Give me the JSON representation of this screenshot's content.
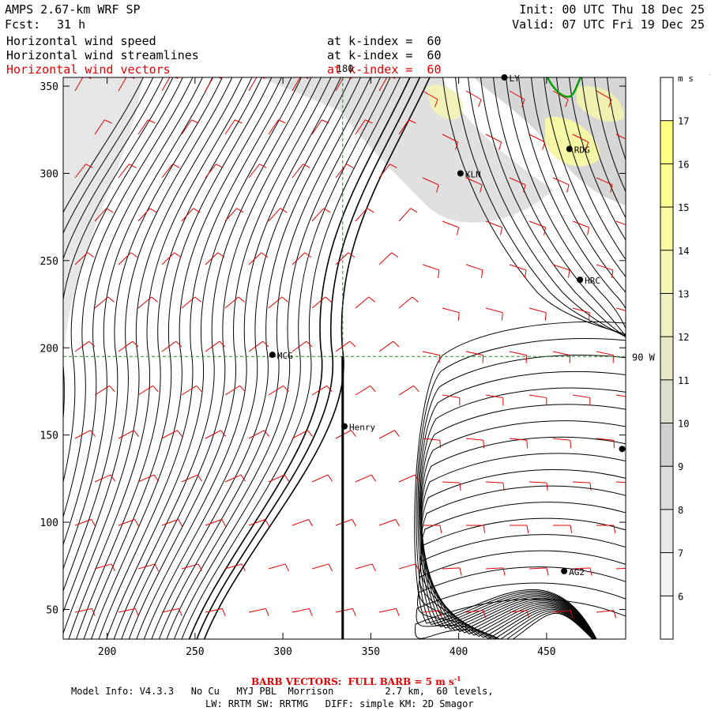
{
  "header": {
    "model": "AMPS 2.67-km WRF SP",
    "forecast_label": "Fcst:",
    "forecast_hours": "31 h",
    "init": "Init: 00 UTC Thu 18 Dec 25",
    "valid": "Valid: 07 UTC Fri 19 Dec 25"
  },
  "fields": [
    {
      "name": "Horizontal wind speed",
      "level": "at k-index =  60",
      "color": "#000000"
    },
    {
      "name": "Horizontal wind streamlines",
      "level": "at k-index =  60",
      "color": "#000000"
    },
    {
      "name": "Horizontal wind vectors",
      "level": "at k-index =  60",
      "color": "#e00000"
    }
  ],
  "chart_data": {
    "type": "heatmap",
    "x_ticks": [
      200,
      250,
      300,
      350,
      400,
      450
    ],
    "y_ticks": [
      50,
      100,
      150,
      200,
      250,
      300,
      350
    ],
    "xlim": [
      175,
      495
    ],
    "ylim": [
      33,
      355
    ],
    "guide_lines": {
      "x": 334,
      "y": 195,
      "x_label": "180",
      "y_label": "90 W"
    },
    "cross_section_x": 334,
    "colorbar": {
      "unit": "m s",
      "unit_exp": "-1",
      "levels": [
        6,
        7,
        8,
        9,
        10,
        11,
        12,
        13,
        14,
        15,
        16,
        17
      ],
      "colors": [
        "#ffffff",
        "#f4f4f4",
        "#e8e8e8",
        "#dcdcdc",
        "#d0d0d0",
        "#dedecc",
        "#e8e8c8",
        "#f0f0c0",
        "#f6f6b0",
        "#fafaa0",
        "#fcfc90",
        "#ffff80"
      ]
    },
    "stations": [
      {
        "name": "LY",
        "x": 426,
        "y": 355
      },
      {
        "name": "RDG",
        "x": 463,
        "y": 314
      },
      {
        "name": "KLN",
        "x": 401,
        "y": 300
      },
      {
        "name": "HRC",
        "x": 469,
        "y": 239
      },
      {
        "name": "MCG",
        "x": 294,
        "y": 196
      },
      {
        "name": "Henry",
        "x": 335,
        "y": 155
      },
      {
        "name": "",
        "x": 493,
        "y": 142
      },
      {
        "name": "AG2",
        "x": 460,
        "y": 72
      }
    ]
  },
  "footer": {
    "barb_note": "BARB VECTORS:  FULL BARB = 5 m s",
    "barb_exp": "-1",
    "model_info": "Model Info: V4.3.3   No Cu   MYJ PBL  Morrison         2.7 km,  60 levels,",
    "physics": "LW: RRTM SW: RRTMG   DIFF: simple KM: 2D Smagor"
  }
}
